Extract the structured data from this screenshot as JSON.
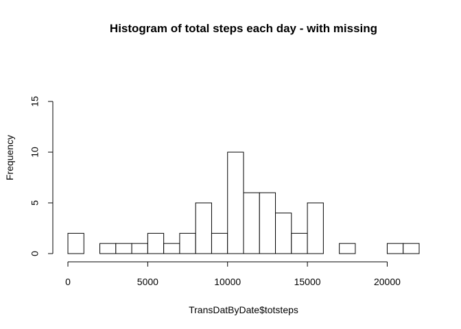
{
  "chart_data": {
    "type": "bar",
    "title": "Histogram of total steps each day - with missing",
    "xlabel": "TransDatByDate$totsteps",
    "ylabel": "Frequency",
    "bin_width": 1000,
    "bin_starts": [
      0,
      1000,
      2000,
      3000,
      4000,
      5000,
      6000,
      7000,
      8000,
      9000,
      10000,
      11000,
      12000,
      13000,
      14000,
      15000,
      16000,
      17000,
      18000,
      19000,
      20000,
      21000
    ],
    "values": [
      2,
      0,
      1,
      1,
      1,
      2,
      1,
      2,
      5,
      2,
      10,
      6,
      6,
      4,
      2,
      5,
      0,
      1,
      0,
      0,
      1,
      1
    ],
    "xlim": [
      0,
      22000
    ],
    "ylim": [
      0,
      15
    ],
    "x_ticks": [
      0,
      5000,
      10000,
      15000,
      20000
    ],
    "y_ticks": [
      0,
      5,
      10,
      15
    ],
    "x_tick_labels": [
      "0",
      "5000",
      "10000",
      "15000",
      "20000"
    ],
    "y_tick_labels": [
      "0",
      "5",
      "10",
      "15"
    ],
    "grid": false,
    "bar_fill": "#ffffff",
    "bar_stroke": "#000000"
  }
}
